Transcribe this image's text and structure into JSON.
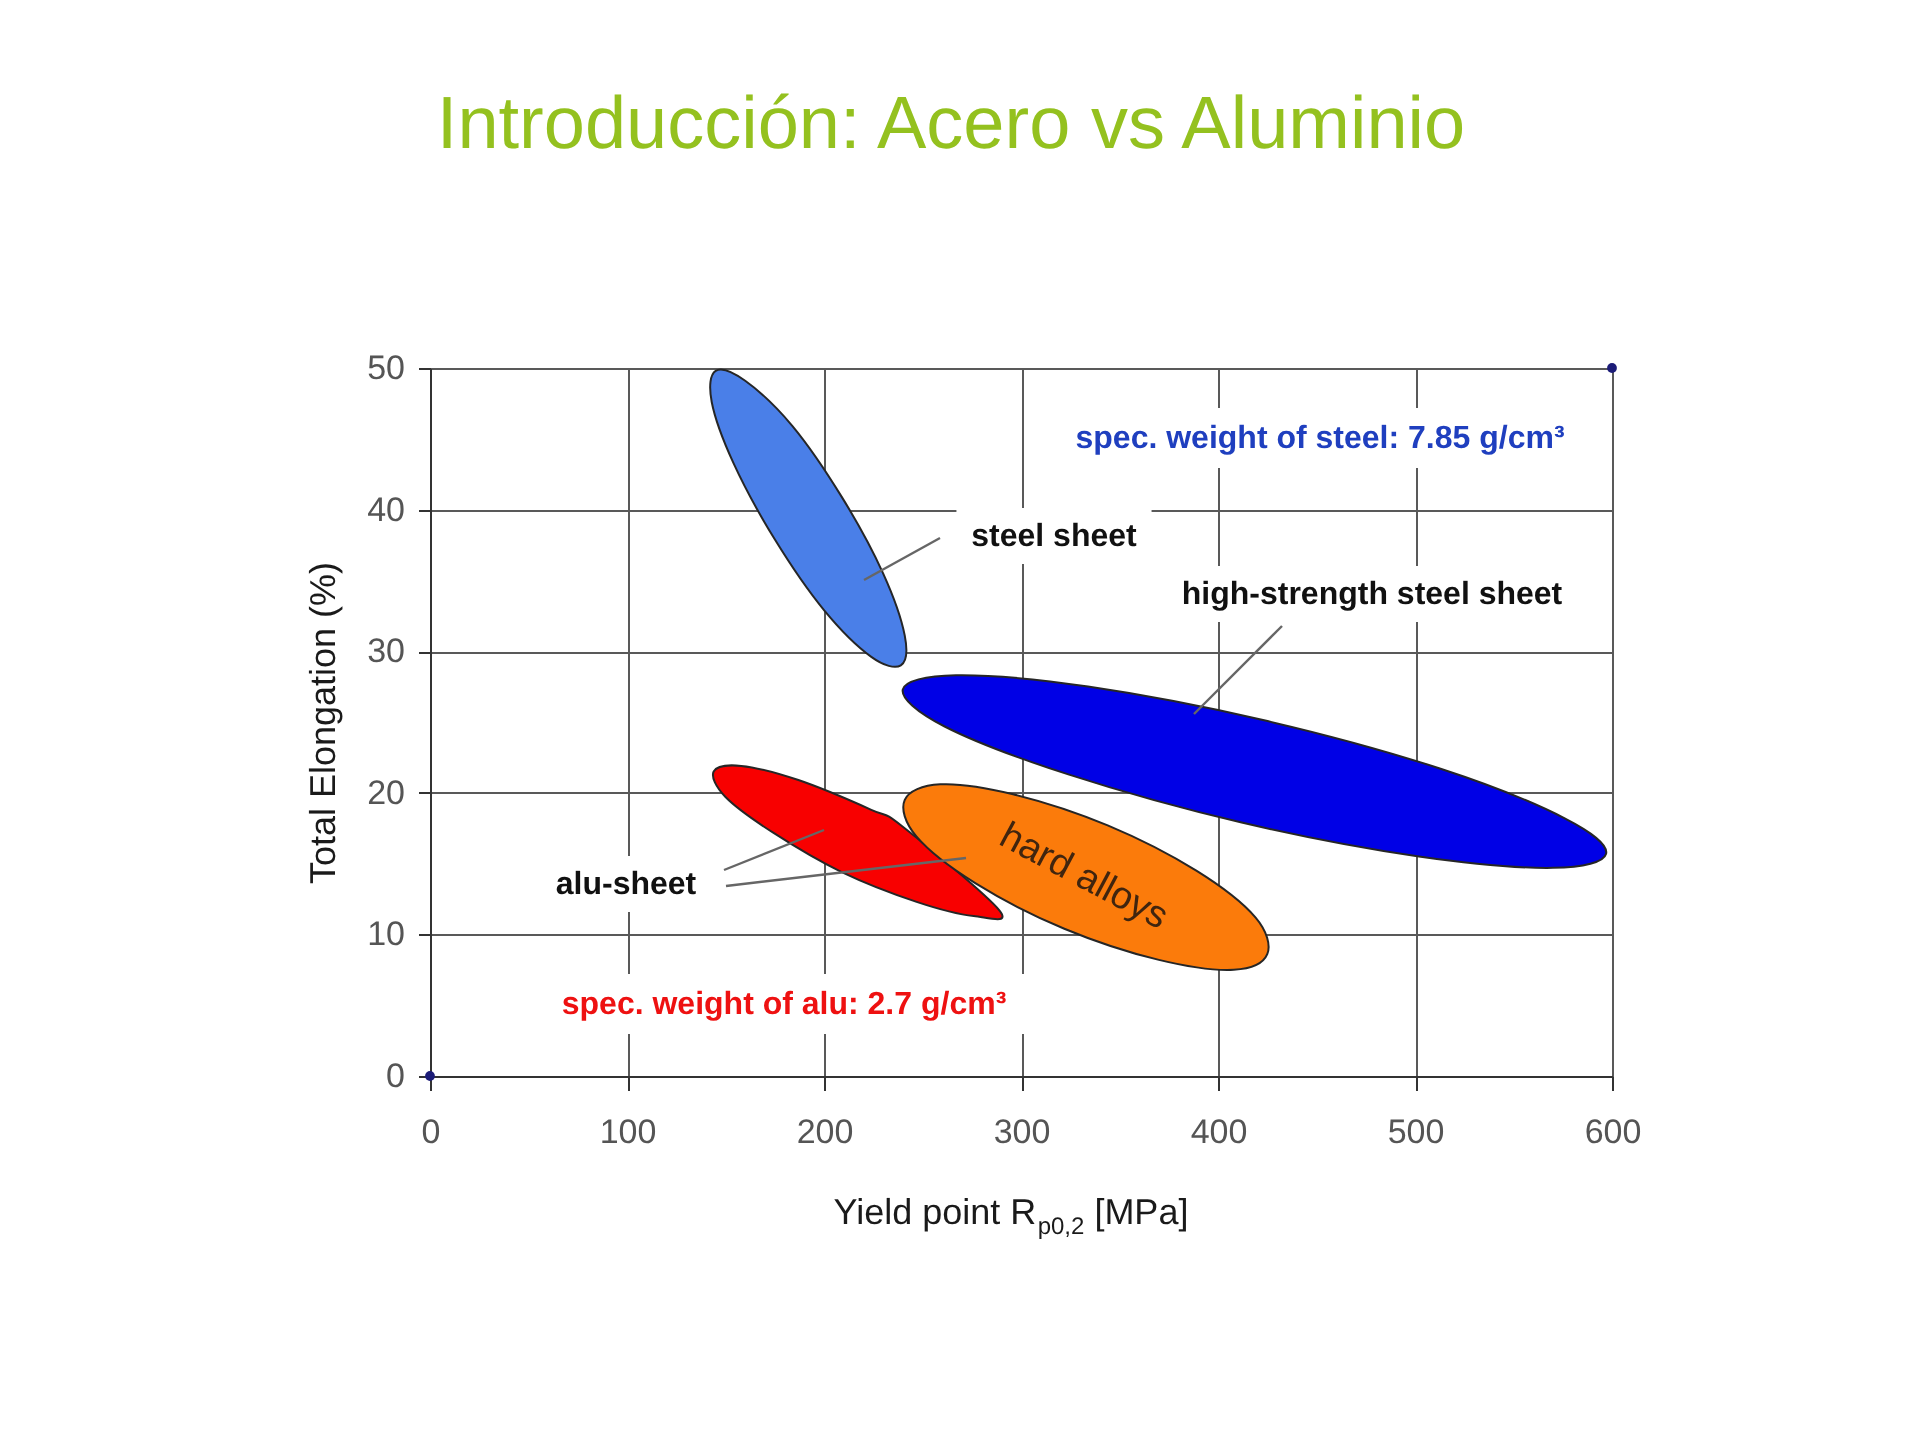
{
  "chart_data": {
    "type": "area",
    "title": "Introducción: Acero vs Aluminio",
    "xlabel": "Yield point R$_{p0,2}$ [MPa]",
    "ylabel": "Total Elongation (%)",
    "xlim": [
      0,
      600
    ],
    "ylim": [
      0,
      50
    ],
    "xticks": [
      0,
      100,
      200,
      300,
      400,
      500,
      600
    ],
    "yticks": [
      0,
      10,
      20,
      30,
      40,
      50
    ],
    "grid": true,
    "series": [
      {
        "name": "steel sheet",
        "color": "#4a7fe8",
        "x": [
          239,
          224,
          200,
          175,
          154,
          143,
          145,
          160,
          184,
          209,
          230,
          241
        ],
        "values": [
          29.0,
          29.6,
          32.9,
          37.9,
          43.3,
          47.6,
          49.8,
          49.1,
          45.9,
          40.9,
          35.5,
          31.1
        ]
      },
      {
        "name": "high-strength steel sheet",
        "color": "#0000e6",
        "x": [
          597,
          570,
          502,
          412,
          324,
          261,
          240,
          267,
          334,
          424,
          513,
          576
        ],
        "values": [
          15.7,
          14.7,
          15.5,
          17.9,
          21.3,
          24.7,
          27.3,
          28.3,
          27.5,
          25.1,
          21.7,
          18.2
        ]
      },
      {
        "name": "alu-sheet",
        "color": "#f80000",
        "x": [
          289,
          276,
          247,
          209,
          174,
          150,
          144,
          158,
          187,
          224,
          240
        ],
        "values": [
          11.7,
          11.3,
          12.3,
          14.4,
          17.2,
          19.7,
          21.5,
          21.9,
          20.9,
          18.8,
          17.6
        ]
      },
      {
        "name": "hard alloys",
        "color": "#fb7b0b",
        "x": [
          425,
          408,
          370,
          322,
          277,
          247,
          241,
          259,
          296,
          344,
          389,
          419
        ],
        "values": [
          8.6,
          7.5,
          8.2,
          10.4,
          13.6,
          16.9,
          19.5,
          20.6,
          19.9,
          17.7,
          14.5,
          11.2
        ]
      },
      {
        "type": "scatter",
        "color": "#1c1c78",
        "marker": "circle",
        "x": [
          0,
          600
        ],
        "values": [
          0,
          50
        ]
      }
    ],
    "annotations": [
      "spec. weight of steel: 7.85 g/cm³",
      "spec. weight of alu: 2.7 g/cm³"
    ]
  }
}
